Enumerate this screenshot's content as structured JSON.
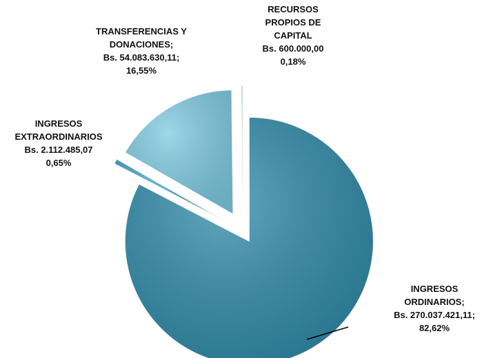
{
  "chart_data": {
    "type": "pie",
    "categories": [
      "INGRESOS ORDINARIOS;",
      "INGRESOS EXTRAORDINARIOS",
      "TRANSFERENCIAS Y DONACIONES;",
      "RECURSOS PROPIOS DE CAPITAL"
    ],
    "values": [
      82.62,
      0.65,
      16.55,
      0.18
    ],
    "value_labels": [
      "82,62%",
      "0,65%",
      "16,55%",
      "0,18%"
    ],
    "amounts": [
      270037421.11,
      2112485.07,
      54083630.11,
      600000.0
    ],
    "amount_labels": [
      "Bs. 270.037.421,11;",
      "Bs. 2.112.485,07",
      "Bs. 54.083.630,11;",
      "Bs. 600.000,00"
    ],
    "colors": [
      "#2f8aa9",
      "#3fa3c3",
      "#7ecbe2",
      "#a9dded"
    ]
  }
}
